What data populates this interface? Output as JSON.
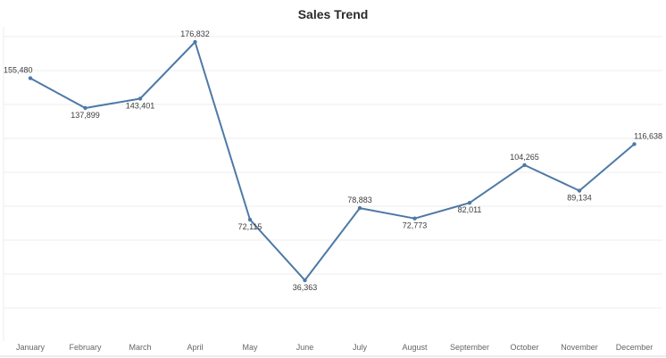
{
  "chart_data": {
    "type": "line",
    "title": "Sales Trend",
    "xlabel": "",
    "ylabel": "",
    "categories": [
      "January",
      "February",
      "March",
      "April",
      "May",
      "June",
      "July",
      "August",
      "September",
      "October",
      "November",
      "December"
    ],
    "series": [
      {
        "values": [
          155480,
          137899,
          143401,
          176832,
          72115,
          36363,
          78883,
          72773,
          82011,
          104265,
          89134,
          116638
        ],
        "data_labels": [
          "155,480",
          "137,899",
          "143,401",
          "176,832",
          "72,115",
          "36,363",
          "78,883",
          "72,773",
          "82,011",
          "104,265",
          "89,134",
          "116,638"
        ],
        "label_position": [
          "above",
          "below",
          "below",
          "above",
          "below",
          "below",
          "above",
          "below",
          "below",
          "above",
          "below",
          "above"
        ]
      }
    ],
    "ylim": [
      0,
      180000
    ],
    "grid": true,
    "colors": {
      "line": "#4e79a7",
      "grid": "#ececec",
      "label_text": "#3c3c3c",
      "axis_text": "#666666"
    }
  }
}
